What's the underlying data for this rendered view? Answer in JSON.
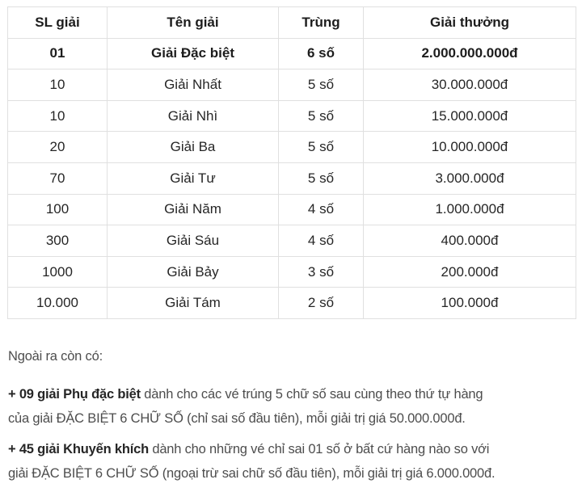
{
  "table": {
    "headers": [
      "SL giải",
      "Tên giải",
      "Trùng",
      "Giải thưởng"
    ],
    "rows": [
      {
        "sl": "01",
        "ten": "Giải Đặc biệt",
        "trung": "6 số",
        "thuong": "2.000.000.000đ"
      },
      {
        "sl": "10",
        "ten": "Giải Nhất",
        "trung": "5 số",
        "thuong": "30.000.000đ"
      },
      {
        "sl": "10",
        "ten": "Giải Nhì",
        "trung": "5 số",
        "thuong": "15.000.000đ"
      },
      {
        "sl": "20",
        "ten": "Giải Ba",
        "trung": "5 số",
        "thuong": "10.000.000đ"
      },
      {
        "sl": "70",
        "ten": "Giải Tư",
        "trung": "5 số",
        "thuong": "3.000.000đ"
      },
      {
        "sl": "100",
        "ten": "Giải Năm",
        "trung": "4 số",
        "thuong": "1.000.000đ"
      },
      {
        "sl": "300",
        "ten": "Giải Sáu",
        "trung": "4 số",
        "thuong": "400.000đ"
      },
      {
        "sl": "1000",
        "ten": "Giải Bảy",
        "trung": "3 số",
        "thuong": "200.000đ"
      },
      {
        "sl": "10.000",
        "ten": "Giải Tám",
        "trung": "2 số",
        "thuong": "100.000đ"
      }
    ]
  },
  "notes": {
    "intro": "Ngoài ra còn có:",
    "paragraphs": [
      {
        "lines": [
          {
            "bold": "+ 09 giải Phụ đặc biệt",
            "text": " dành cho các vé trúng 5 chữ số sau cùng theo thứ tự hàng"
          },
          {
            "text": "của giải ĐẶC BIỆT 6 CHỮ SỐ (chỉ sai số đầu tiên), mỗi giải trị giá 50.000.000đ."
          }
        ]
      },
      {
        "lines": [
          {
            "bold": "+ 45 giải Khuyến khích",
            "text": " dành cho những vé chỉ sai 01 số ở bất cứ hàng nào so với"
          },
          {
            "text": "giải ĐẶC BIỆT 6 CHỮ SỐ (ngoại trừ sai chữ số đầu tiên), mỗi giải trị giá 6.000.000đ."
          }
        ]
      }
    ]
  },
  "colors": {
    "border": "#e0e0e0",
    "table_text": "#262626",
    "body_text": "#4d4d4d"
  }
}
